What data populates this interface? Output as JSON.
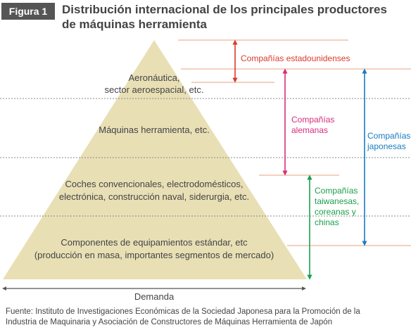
{
  "figure": {
    "label": "Figura 1",
    "title_line1": "Distribución internacional de los principales productores",
    "title_line2": "de máquinas herramienta"
  },
  "pyramid": {
    "levels": [
      {
        "line1": "Aeronáutica,",
        "line2": "sector aeroespacial, etc."
      },
      {
        "line1": "Máquinas herramienta, etc."
      },
      {
        "line1": "Coches convencionales, electrodomésticos,",
        "line2": "electrónica, construcción naval, siderurgia, etc."
      },
      {
        "line1": "Componentes de equipamientos estándar, etc",
        "line2": "(producción en masa, importantes segmentos de mercado)"
      }
    ]
  },
  "companies": {
    "us": {
      "label": "Compañías estadounidenses"
    },
    "german": {
      "line1": "Compañías",
      "line2": "alemanas"
    },
    "japanese": {
      "line1": "Compañías",
      "line2": "japonesas"
    },
    "asian": {
      "line1": "Compañías",
      "line2": "taiwanesas,",
      "line3": "coreanas y",
      "line4": "chinas"
    }
  },
  "axis": {
    "label": "Demanda"
  },
  "source": {
    "line1": "Fuente: Instituto de Investigaciones Económicas de la Sociedad Japonesa para la Promoción de la",
    "line2": "Industria de Maquinaria y Asociación de Constructores de Máquinas Herramienta de Japón"
  },
  "colors": {
    "pyramid_fill": "#e8dfb5",
    "us": "#d93b2b",
    "german": "#d62e7b",
    "japanese": "#1a7cc0",
    "asian": "#1aa04a",
    "guide": "#eeb59a",
    "dotted": "#888888",
    "text": "#444444"
  }
}
